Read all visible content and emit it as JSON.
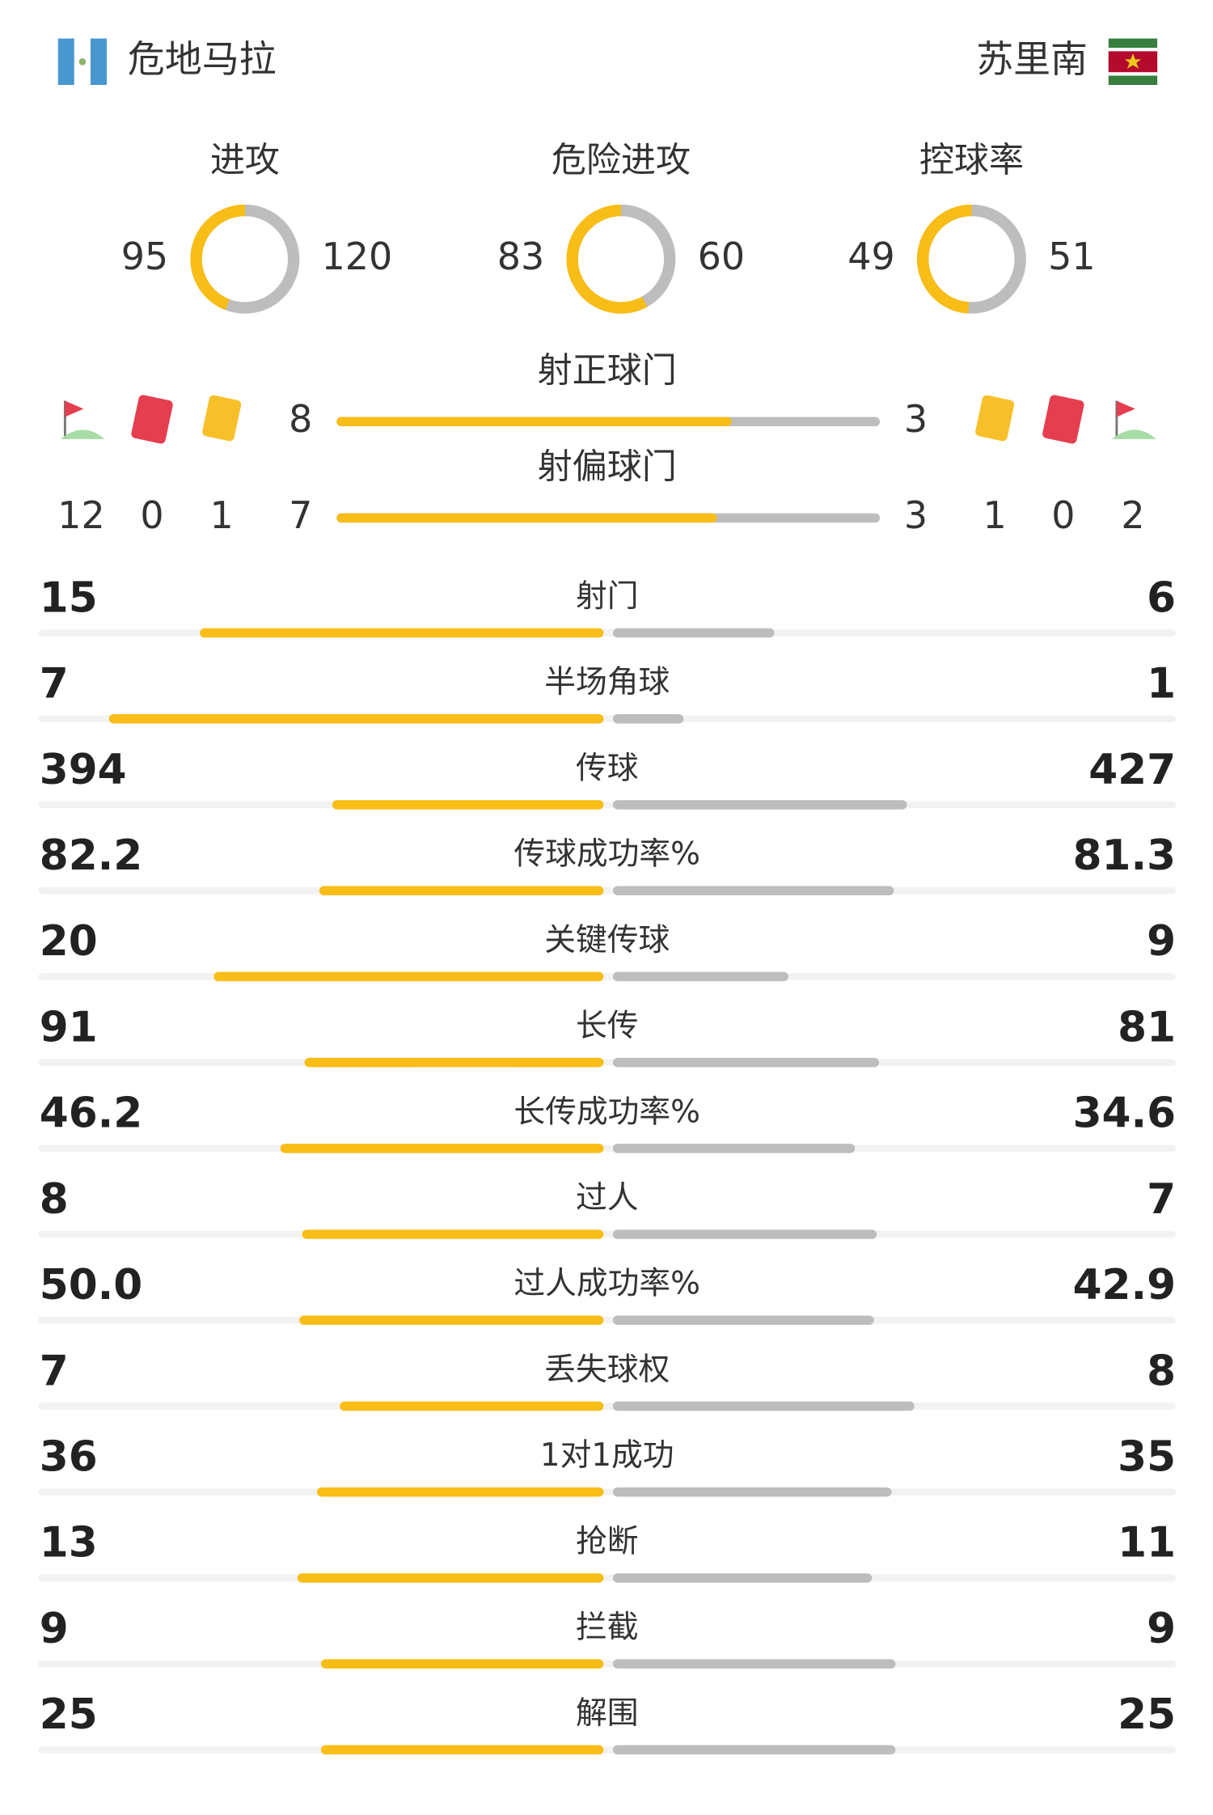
{
  "home": {
    "name": "危地马拉"
  },
  "away": {
    "name": "苏里南"
  },
  "rings": [
    {
      "label": "进攻",
      "home": 95,
      "away": 120
    },
    {
      "label": "危险进攻",
      "home": 83,
      "away": 60
    },
    {
      "label": "控球率",
      "home": 49,
      "away": 51
    }
  ],
  "shots": [
    {
      "label": "射正球门",
      "home": 8,
      "away": 3
    },
    {
      "label": "射偏球门",
      "home": 7,
      "away": 3
    }
  ],
  "cards": {
    "home": {
      "corners": 12,
      "red": 0,
      "yellow": 1
    },
    "away": {
      "yellow": 1,
      "red": 0,
      "corners": 2
    }
  },
  "stats": [
    {
      "label": "射门",
      "home": "15",
      "away": "6"
    },
    {
      "label": "半场角球",
      "home": "7",
      "away": "1"
    },
    {
      "label": "传球",
      "home": "394",
      "away": "427"
    },
    {
      "label": "传球成功率%",
      "home": "82.2",
      "away": "81.3"
    },
    {
      "label": "关键传球",
      "home": "20",
      "away": "9"
    },
    {
      "label": "长传",
      "home": "91",
      "away": "81"
    },
    {
      "label": "长传成功率%",
      "home": "46.2",
      "away": "34.6"
    },
    {
      "label": "过人",
      "home": "8",
      "away": "7"
    },
    {
      "label": "过人成功率%",
      "home": "50.0",
      "away": "42.9"
    },
    {
      "label": "丢失球权",
      "home": "7",
      "away": "8"
    },
    {
      "label": "1对1成功",
      "home": "36",
      "away": "35"
    },
    {
      "label": "抢断",
      "home": "13",
      "away": "11"
    },
    {
      "label": "拦截",
      "home": "9",
      "away": "9"
    },
    {
      "label": "解围",
      "home": "25",
      "away": "25"
    }
  ]
}
